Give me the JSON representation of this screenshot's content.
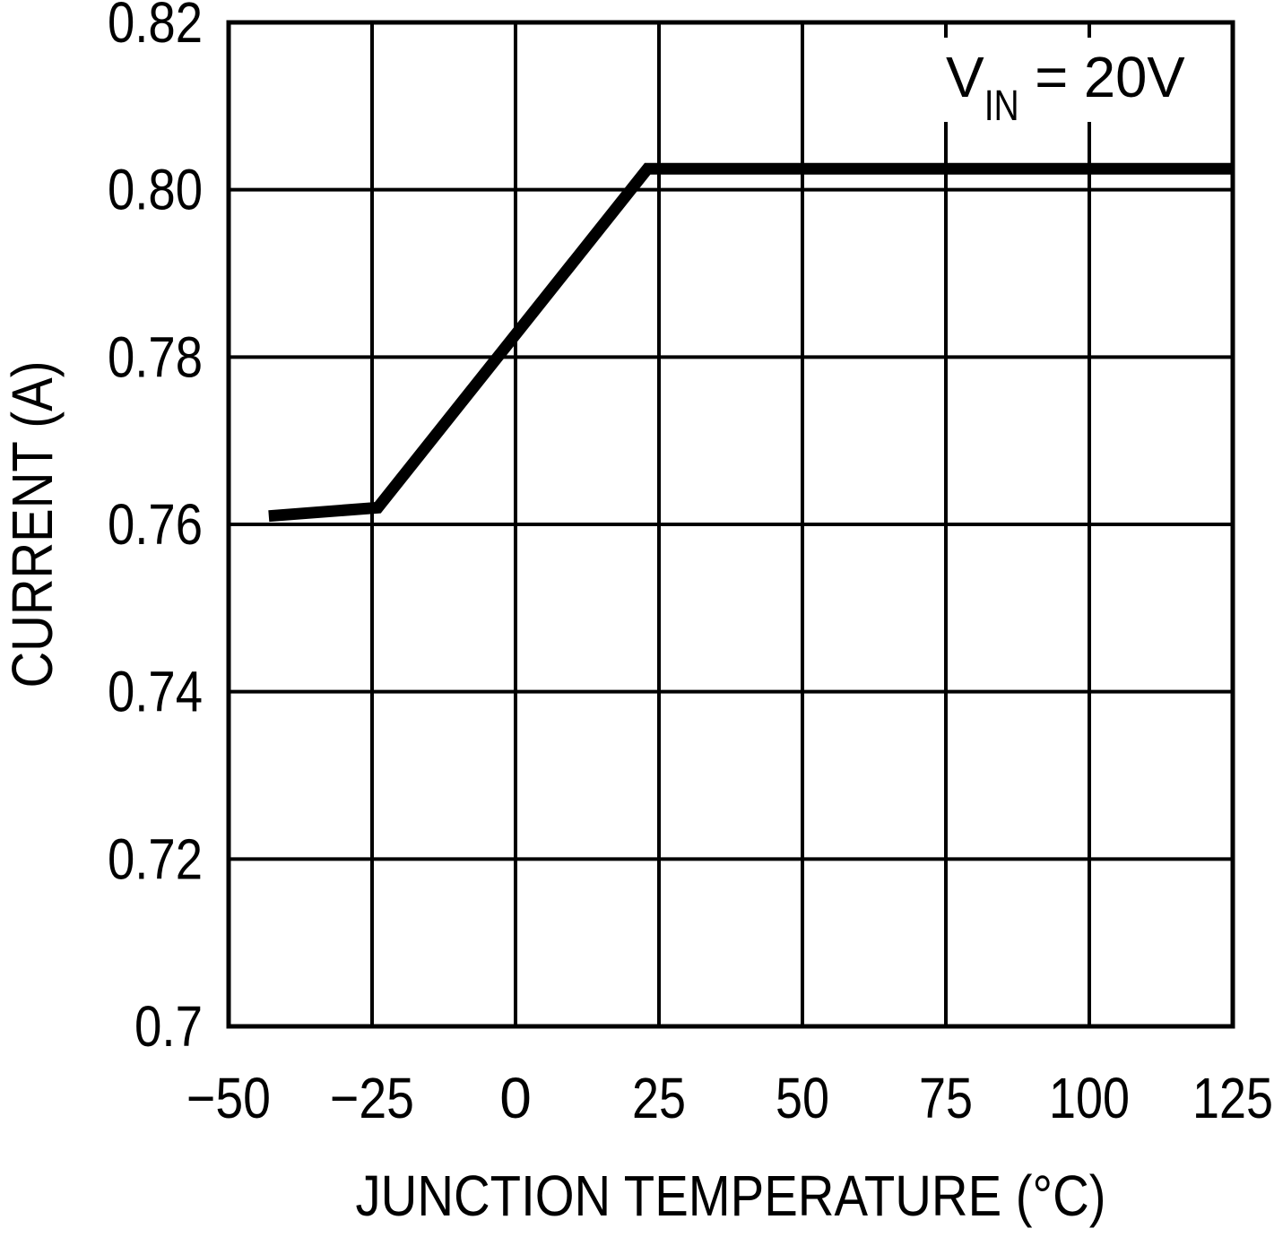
{
  "chart_data": {
    "type": "line",
    "title": "",
    "xlabel": "JUNCTION TEMPERATURE (°C)",
    "ylabel": "CURRENT (A)",
    "xlim": [
      -50,
      125
    ],
    "ylim": [
      0.7,
      0.82
    ],
    "xticks": [
      -50,
      -25,
      0,
      25,
      50,
      75,
      100,
      125
    ],
    "xtick_labels": [
      "−50",
      "−25",
      "0",
      "25",
      "50",
      "75",
      "100",
      "125"
    ],
    "yticks": [
      0.7,
      0.72,
      0.74,
      0.76,
      0.78,
      0.8,
      0.82
    ],
    "ytick_labels": [
      "0.7",
      "0.72",
      "0.74",
      "0.76",
      "0.78",
      "0.80",
      "0.82"
    ],
    "grid": true,
    "legend_position": "none",
    "annotation": {
      "text": "VIN = 20V",
      "prefix": "V",
      "subscript": "IN",
      "suffix": " = 20V",
      "position": "top-right"
    },
    "series": [
      {
        "name": "VIN = 20V",
        "color": "#000000",
        "points": [
          [
            -43,
            0.761
          ],
          [
            -24,
            0.762
          ],
          [
            23,
            0.8025
          ],
          [
            125,
            0.8025
          ]
        ]
      }
    ],
    "colors": {
      "line": "#000000",
      "grid": "#000000",
      "axis": "#000000",
      "text": "#000000",
      "background": "#ffffff"
    }
  }
}
